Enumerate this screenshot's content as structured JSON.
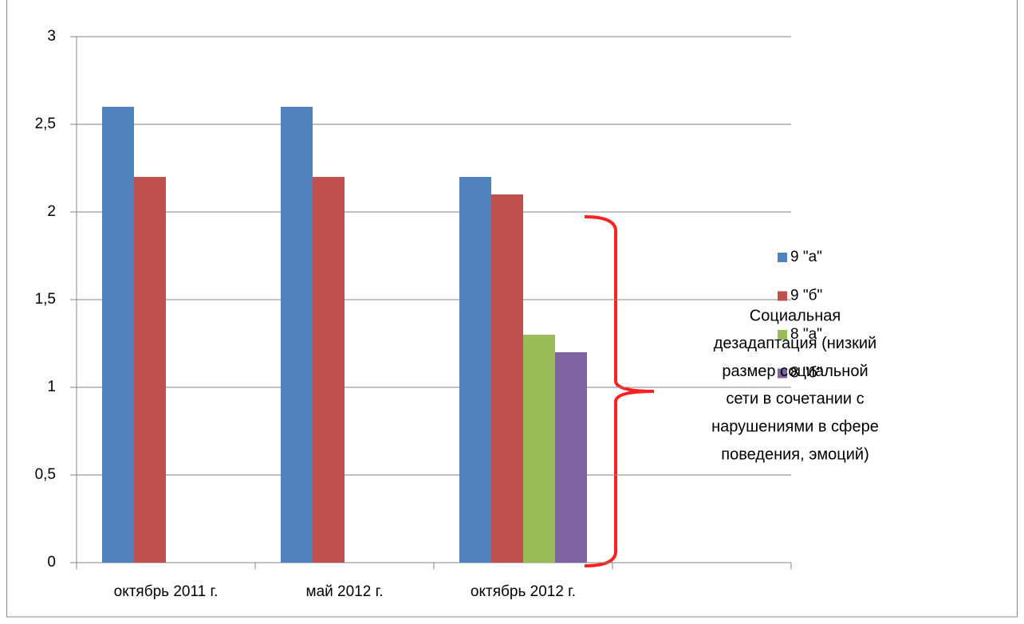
{
  "chart_data": {
    "type": "bar",
    "categories": [
      "октябрь 2011 г.",
      "май 2012 г.",
      "октябрь 2012 г.",
      null
    ],
    "series": [
      {
        "name": "9 \"а\"",
        "color": "#4f81bd",
        "values": [
          2.6,
          2.6,
          2.2,
          null
        ]
      },
      {
        "name": "9 \"б\"",
        "color": "#c0504d",
        "values": [
          2.2,
          2.2,
          2.1,
          null
        ]
      },
      {
        "name": "8 \"а\"",
        "color": "#9bbb59",
        "values": [
          null,
          null,
          1.3,
          null
        ]
      },
      {
        "name": "8 \"б\"",
        "color": "#8064a2",
        "values": [
          null,
          null,
          1.2,
          null
        ]
      }
    ],
    "ylim": [
      0,
      3
    ],
    "yticks": [
      0,
      {
        "value": 0.5,
        "label": "0,5"
      },
      1,
      {
        "value": 1.5,
        "label": "1,5"
      },
      2,
      {
        "value": 2.5,
        "label": "2,5"
      },
      3
    ],
    "grid": true,
    "legend": "right",
    "annotation": [
      "Социальная",
      "дезадаптация (низкий",
      "размер социальной",
      "сети в сочетании с",
      "нарушениями в сфере",
      "поведения, эмоций)"
    ]
  }
}
